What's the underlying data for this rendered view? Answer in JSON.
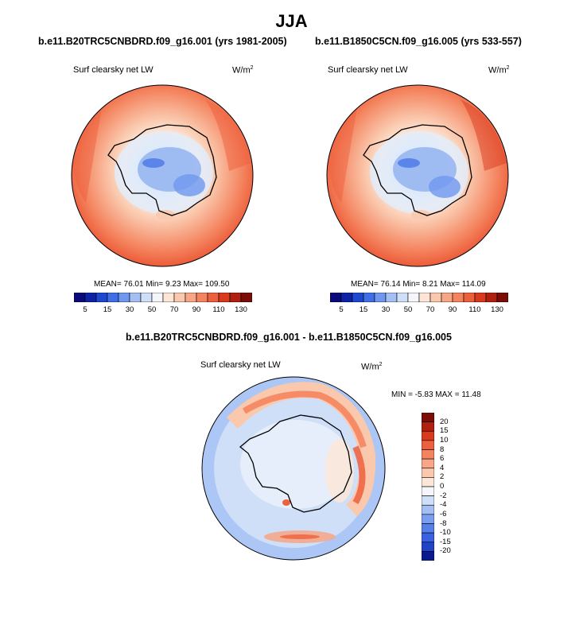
{
  "season_title": "JJA",
  "panels": [
    {
      "title": "b.e11.B20TRC5CNBDRD.f09_g16.001 (yrs 1981-2005)",
      "variable": "Surf clearsky net LW",
      "units": "W/m",
      "units_sup": "2",
      "stats_text": "MEAN=  76.01  Min=   9.23  Max= 109.50",
      "mean": 76.01,
      "min": 9.23,
      "max": 109.5
    },
    {
      "title": "b.e11.B1850C5CN.f09_g16.005 (yrs 533-557)",
      "variable": "Surf clearsky net LW",
      "units": "W/m",
      "units_sup": "2",
      "stats_text": "MEAN=  76.14  Min=   8.21  Max= 114.09",
      "mean": 76.14,
      "min": 8.21,
      "max": 114.09
    }
  ],
  "diff_panel": {
    "title": "b.e11.B20TRC5CNBDRD.f09_g16.001 - b.e11.B1850C5CN.f09_g16.005",
    "variable": "Surf clearsky net LW",
    "units": "W/m",
    "units_sup": "2",
    "stats_text": "MIN =  -5.83 MAX =  11.48",
    "min": -5.83,
    "max": 11.48
  },
  "main_colorbar": {
    "labels": [
      "5",
      "15",
      "30",
      "50",
      "70",
      "90",
      "110",
      "130"
    ],
    "colors": [
      "#0a0a7a",
      "#0e22a8",
      "#1f48d2",
      "#3f6ee6",
      "#6f97ef",
      "#a3bff4",
      "#cfdff8",
      "#f4f6fc",
      "#fde6d6",
      "#fac8ad",
      "#f7a686",
      "#f4845f",
      "#ed603d",
      "#d93a1e",
      "#b0200e",
      "#7a0d05"
    ]
  },
  "diff_colorbar": {
    "labels": [
      "20",
      "15",
      "10",
      "8",
      "6",
      "4",
      "2",
      "0",
      "-2",
      "-4",
      "-6",
      "-8",
      "-10",
      "-15",
      "-20"
    ],
    "colors": [
      "#7a0d05",
      "#b0200e",
      "#d93a1e",
      "#ed603d",
      "#f4845f",
      "#f7a686",
      "#fac8ad",
      "#fde6d6",
      "#f4f6fc",
      "#cfdff8",
      "#a3bff4",
      "#7b9fef",
      "#5580ea",
      "#3a61e4",
      "#1f44c8",
      "#0a1a8c"
    ]
  }
}
